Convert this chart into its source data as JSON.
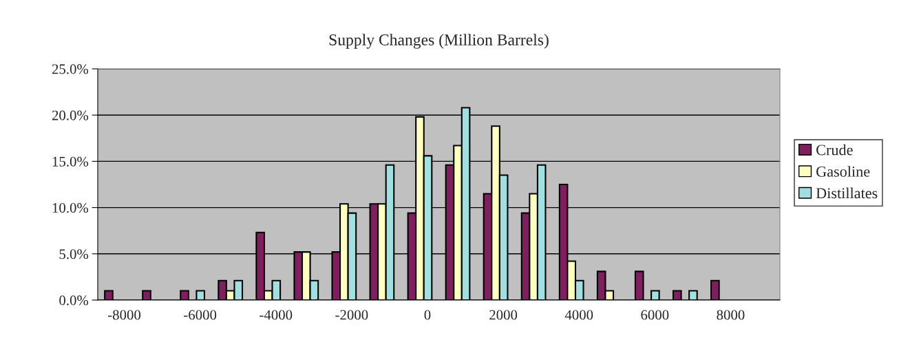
{
  "chart_data": {
    "type": "bar",
    "title": "Supply Changes (Million Barrels)",
    "categories": [
      "-8000",
      null,
      "-6000",
      null,
      "-4000",
      null,
      "-2000",
      null,
      "0",
      null,
      "2000",
      null,
      "4000",
      null,
      "6000",
      null,
      "8000",
      null
    ],
    "series": [
      {
        "name": "Crude",
        "color": "#7f1f5f",
        "values": [
          1.0,
          1.0,
          1.0,
          2.1,
          7.3,
          5.2,
          5.2,
          10.4,
          9.4,
          14.6,
          11.5,
          9.4,
          12.5,
          3.1,
          3.1,
          1.0,
          2.1,
          null
        ]
      },
      {
        "name": "Gasoline",
        "color": "#ffffc0",
        "values": [
          null,
          null,
          null,
          1.0,
          1.0,
          5.2,
          10.4,
          10.4,
          19.8,
          16.7,
          18.8,
          11.5,
          4.2,
          1.0,
          null,
          null,
          null,
          null
        ]
      },
      {
        "name": "Distillates",
        "color": "#a0e0e0",
        "values": [
          null,
          null,
          1.0,
          2.1,
          2.1,
          2.1,
          9.4,
          14.6,
          15.6,
          20.8,
          13.5,
          14.6,
          2.1,
          null,
          1.0,
          1.0,
          null,
          null
        ]
      }
    ],
    "ylim": [
      0,
      25
    ],
    "yticks": [
      {
        "value": 0,
        "label": "0.0%"
      },
      {
        "value": 5,
        "label": "5.0%"
      },
      {
        "value": 10,
        "label": "10.0%"
      },
      {
        "value": 15,
        "label": "15.0%"
      },
      {
        "value": 20,
        "label": "20.0%"
      },
      {
        "value": 25,
        "label": "25.0%"
      }
    ],
    "grid": "y",
    "legend": "right"
  }
}
